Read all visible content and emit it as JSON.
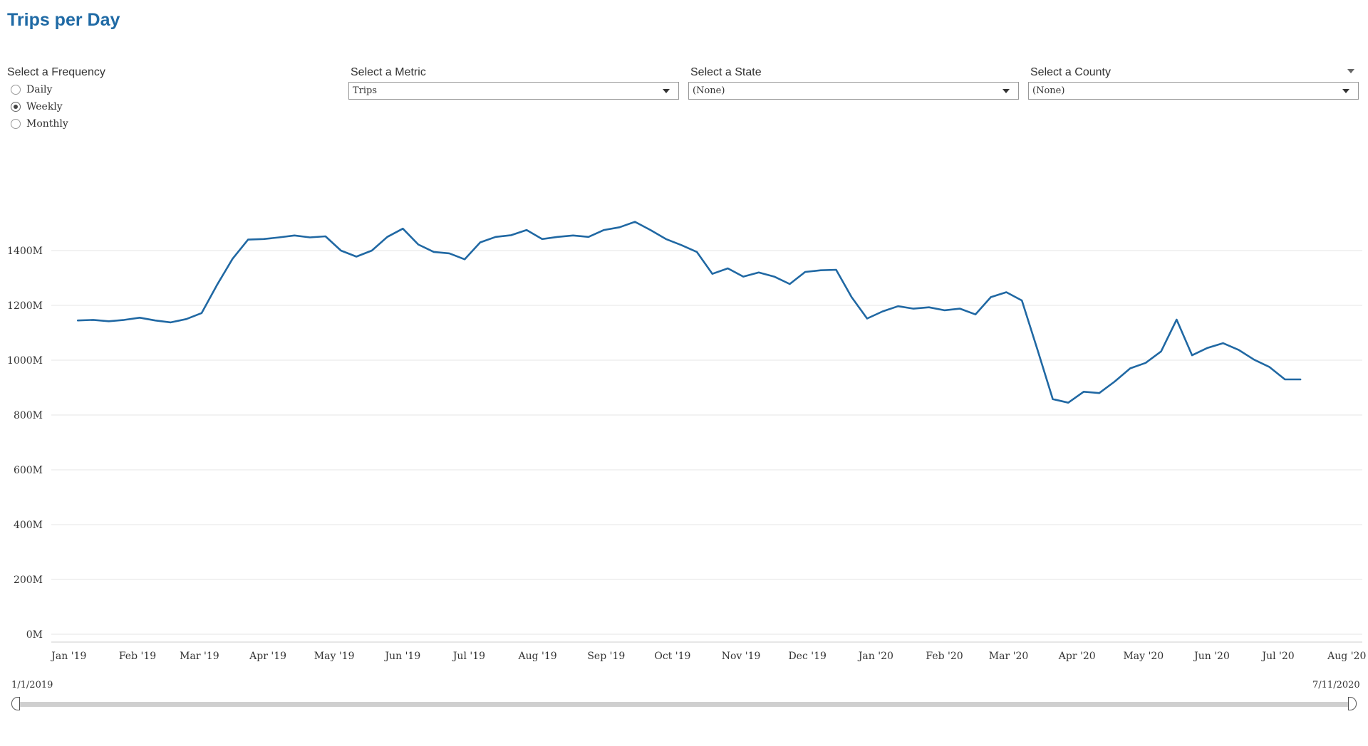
{
  "page": {
    "title": "Trips per Day"
  },
  "controls": {
    "frequency": {
      "label": "Select a Frequency",
      "options": [
        "Daily",
        "Weekly",
        "Monthly"
      ],
      "selected": "Weekly"
    },
    "metric": {
      "label": "Select a Metric",
      "value": "Trips"
    },
    "state": {
      "label": "Select a State",
      "value": "(None)"
    },
    "county": {
      "label": "Select a County",
      "value": "(None)"
    }
  },
  "range": {
    "start_label": "1/1/2019",
    "end_label": "7/11/2020"
  },
  "colors": {
    "title": "#1f6aa5",
    "line": "#2068a3",
    "grid": "#e6e6e6"
  },
  "chart_data": {
    "type": "line",
    "title": "Trips per Day",
    "xlabel": "",
    "ylabel": "",
    "ylim": [
      0,
      1400000000
    ],
    "y_ticks": [
      0,
      200000000,
      400000000,
      600000000,
      800000000,
      1000000000,
      1200000000,
      1400000000
    ],
    "y_tick_labels": [
      "0M",
      "200M",
      "400M",
      "600M",
      "800M",
      "1000M",
      "1200M",
      "1400M"
    ],
    "x_range": [
      "2018-12-24",
      "2020-08-08"
    ],
    "x_ticks": [
      "2019-01-01",
      "2019-02-01",
      "2019-03-01",
      "2019-04-01",
      "2019-05-01",
      "2019-06-01",
      "2019-07-01",
      "2019-08-01",
      "2019-09-01",
      "2019-10-01",
      "2019-11-01",
      "2019-12-01",
      "2020-01-01",
      "2020-02-01",
      "2020-03-01",
      "2020-04-01",
      "2020-05-01",
      "2020-06-01",
      "2020-07-01",
      "2020-08-01"
    ],
    "x_tick_labels": [
      "Jan '19",
      "Feb '19",
      "Mar '19",
      "Apr '19",
      "May '19",
      "Jun '19",
      "Jul '19",
      "Aug '19",
      "Sep '19",
      "Oct '19",
      "Nov '19",
      "Dec '19",
      "Jan '20",
      "Feb '20",
      "Mar '20",
      "Apr '20",
      "May '20",
      "Jun '20",
      "Jul '20",
      "Aug '20"
    ],
    "grid": true,
    "series": [
      {
        "name": "Trips",
        "x": [
          "2019-01-05",
          "2019-01-12",
          "2019-01-19",
          "2019-01-26",
          "2019-02-02",
          "2019-02-09",
          "2019-02-16",
          "2019-02-23",
          "2019-03-02",
          "2019-03-09",
          "2019-03-16",
          "2019-03-23",
          "2019-03-30",
          "2019-04-06",
          "2019-04-13",
          "2019-04-20",
          "2019-04-27",
          "2019-05-04",
          "2019-05-11",
          "2019-05-18",
          "2019-05-25",
          "2019-06-01",
          "2019-06-08",
          "2019-06-15",
          "2019-06-22",
          "2019-06-29",
          "2019-07-06",
          "2019-07-13",
          "2019-07-20",
          "2019-07-27",
          "2019-08-03",
          "2019-08-10",
          "2019-08-17",
          "2019-08-24",
          "2019-08-31",
          "2019-09-07",
          "2019-09-14",
          "2019-09-21",
          "2019-09-28",
          "2019-10-05",
          "2019-10-12",
          "2019-10-19",
          "2019-10-26",
          "2019-11-02",
          "2019-11-09",
          "2019-11-16",
          "2019-11-23",
          "2019-11-30",
          "2019-12-07",
          "2019-12-14",
          "2019-12-21",
          "2019-12-28",
          "2020-01-04",
          "2020-01-11",
          "2020-01-18",
          "2020-01-25",
          "2020-02-01",
          "2020-02-08",
          "2020-02-15",
          "2020-02-22",
          "2020-02-29",
          "2020-03-07",
          "2020-03-14",
          "2020-03-21",
          "2020-03-28",
          "2020-04-04",
          "2020-04-11",
          "2020-04-18",
          "2020-04-25",
          "2020-05-02",
          "2020-05-09",
          "2020-05-16",
          "2020-05-23",
          "2020-05-30",
          "2020-06-06",
          "2020-06-13",
          "2020-06-20",
          "2020-06-27",
          "2020-07-04",
          "2020-07-11"
        ],
        "values": [
          1145000000,
          1147000000,
          1142000000,
          1147000000,
          1155000000,
          1145000000,
          1138000000,
          1150000000,
          1172000000,
          1275000000,
          1370000000,
          1440000000,
          1442000000,
          1448000000,
          1455000000,
          1448000000,
          1452000000,
          1400000000,
          1378000000,
          1400000000,
          1450000000,
          1480000000,
          1422000000,
          1395000000,
          1390000000,
          1368000000,
          1430000000,
          1450000000,
          1456000000,
          1475000000,
          1442000000,
          1450000000,
          1455000000,
          1450000000,
          1475000000,
          1485000000,
          1505000000,
          1475000000,
          1442000000,
          1420000000,
          1395000000,
          1315000000,
          1335000000,
          1305000000,
          1320000000,
          1305000000,
          1278000000,
          1322000000,
          1328000000,
          1330000000,
          1230000000,
          1152000000,
          1178000000,
          1197000000,
          1188000000,
          1193000000,
          1182000000,
          1188000000,
          1167000000,
          1230000000,
          1248000000,
          1218000000,
          1040000000,
          858000000,
          845000000,
          885000000,
          880000000,
          922000000,
          970000000,
          990000000,
          1032000000,
          1148000000,
          1018000000,
          1045000000,
          1062000000,
          1038000000,
          1002000000,
          975000000,
          930000000,
          930000000
        ]
      }
    ]
  }
}
